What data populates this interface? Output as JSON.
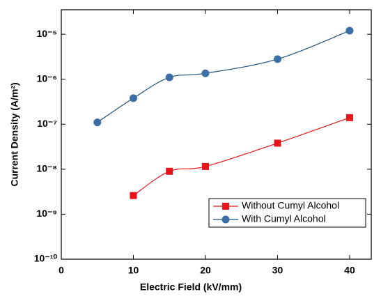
{
  "chart_data": {
    "type": "line",
    "x_label": "Electric Field (kV/mm)",
    "y_label": "Current Density (A/m²)",
    "log_y": true,
    "legend": "lower right",
    "xlim": [
      0,
      43
    ],
    "xticks": [
      0,
      10,
      20,
      30,
      40
    ],
    "ylim": [
      1e-10,
      3.5e-05
    ],
    "yticks": [
      {
        "value": 1e-10,
        "label": "10⁻¹⁰"
      },
      {
        "value": 1e-09,
        "label": "10⁻⁹"
      },
      {
        "value": 1e-08,
        "label": "10⁻⁸"
      },
      {
        "value": 1e-07,
        "label": "10⁻⁷"
      },
      {
        "value": 1e-06,
        "label": "10⁻⁶"
      },
      {
        "value": 1e-05,
        "label": "10⁻⁵"
      }
    ],
    "series": [
      {
        "name": "Without Cumyl Alcohol",
        "color": "#e8141b",
        "line_color": "#e8141b",
        "marker": "square",
        "x": [
          10,
          15,
          20,
          30,
          40
        ],
        "values": [
          2.6e-09,
          9e-09,
          1.15e-08,
          3.8e-08,
          1.4e-07
        ]
      },
      {
        "name": "With Cumyl Alcohol",
        "color": "#3a6ea5",
        "line_color": "#1f4e79",
        "marker": "circle",
        "x": [
          5,
          10,
          15,
          20,
          30,
          40
        ],
        "values": [
          1.1e-07,
          3.8e-07,
          1.1e-06,
          1.35e-06,
          2.8e-06,
          1.2e-05
        ]
      }
    ]
  }
}
